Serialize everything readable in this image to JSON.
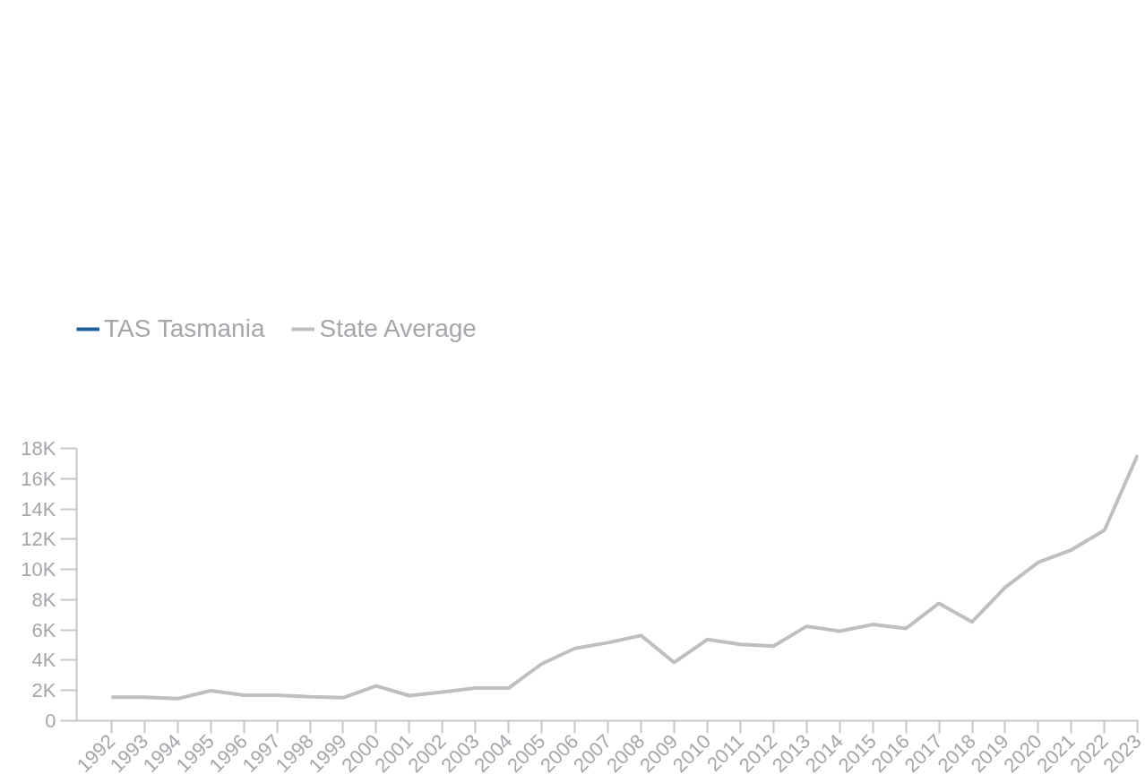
{
  "chart_data": {
    "type": "line",
    "categories": [
      "1992",
      "1993",
      "1994",
      "1995",
      "1996",
      "1997",
      "1998",
      "1999",
      "2000",
      "2001",
      "2002",
      "2003",
      "2004",
      "2005",
      "2006",
      "2007",
      "2008",
      "2009",
      "2010",
      "2011",
      "2012",
      "2013",
      "2014",
      "2015",
      "2016",
      "2017",
      "2018",
      "2019",
      "2020",
      "2021",
      "2022",
      "2023"
    ],
    "series": [
      {
        "name": "TAS Tasmania",
        "color": "#1f5f99",
        "values": [
          null,
          null,
          null,
          null,
          null,
          null,
          null,
          null,
          null,
          null,
          null,
          null,
          null,
          null,
          null,
          null,
          null,
          null,
          null,
          null,
          null,
          null,
          null,
          null,
          null,
          null,
          null,
          null,
          null,
          null,
          null,
          null
        ]
      },
      {
        "name": "State Average",
        "color": "#bcc0c0",
        "values": [
          1550,
          1550,
          1460,
          1980,
          1690,
          1690,
          1580,
          1520,
          2300,
          1660,
          1900,
          2160,
          2160,
          3760,
          4780,
          5160,
          5630,
          3850,
          5370,
          5050,
          4930,
          6240,
          5920,
          6360,
          6100,
          7760,
          6530,
          8810,
          10470,
          11290,
          12600,
          17560
        ]
      }
    ],
    "ylim": [
      0,
      18000
    ],
    "yticks": [
      0,
      {
        "value": 2000,
        "label": "2K"
      },
      {
        "value": 4000,
        "label": "4K"
      },
      {
        "value": 6000,
        "label": "6K"
      },
      {
        "value": 8000,
        "label": "8K"
      },
      {
        "value": 10000,
        "label": "10K"
      },
      {
        "value": 12000,
        "label": "12K"
      },
      {
        "value": 14000,
        "label": "14K"
      },
      {
        "value": 16000,
        "label": "16K"
      },
      {
        "value": 18000,
        "label": "18K"
      }
    ],
    "grid": false,
    "legend": "top left",
    "marker": "none",
    "line_style": "solid"
  }
}
